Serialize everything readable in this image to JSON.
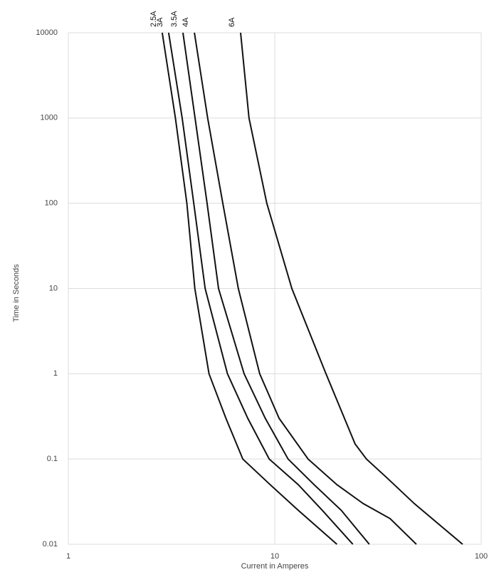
{
  "chart_data": {
    "type": "line",
    "x_label": "Current in Amperes",
    "y_label": "Time in Seconds",
    "xscale": "log",
    "yscale": "log",
    "grid": true,
    "xlim": [
      1,
      100
    ],
    "xticks": [
      1,
      10,
      100
    ],
    "ylim": [
      0.01,
      10000
    ],
    "yticks": [
      0.01,
      0.1,
      1,
      10,
      100,
      1000,
      10000
    ],
    "series": [
      {
        "name": "2.5A",
        "color": "#111111",
        "x": [
          2.85,
          3.3,
          3.75,
          4.1,
          4.8,
          5.8,
          7.0,
          9.5,
          13,
          20
        ],
        "values": [
          10000,
          1000,
          100,
          10,
          1,
          0.3,
          0.1,
          0.05,
          0.025,
          0.01
        ]
      },
      {
        "name": "3A",
        "color": "#111111",
        "x": [
          3.06,
          3.56,
          4.05,
          4.6,
          5.9,
          7.4,
          9.4,
          13,
          17,
          23.9
        ],
        "values": [
          10000,
          1000,
          100,
          10,
          1,
          0.3,
          0.1,
          0.05,
          0.025,
          0.01
        ]
      },
      {
        "name": "3.5A",
        "color": "#111111",
        "x": [
          3.59,
          4.11,
          4.7,
          5.34,
          7.1,
          9.0,
          11.6,
          15.5,
          21,
          28.7
        ],
        "values": [
          10000,
          1000,
          100,
          10,
          1,
          0.3,
          0.1,
          0.05,
          0.025,
          0.01
        ]
      },
      {
        "name": "4A",
        "color": "#111111",
        "x": [
          4.08,
          4.73,
          5.6,
          6.66,
          8.45,
          10.5,
          14.5,
          20,
          26.8,
          36.2,
          48.5
        ],
        "values": [
          10000,
          1000,
          100,
          10,
          1,
          0.3,
          0.1,
          0.05,
          0.03,
          0.02,
          0.01
        ]
      },
      {
        "name": "6A",
        "color": "#111111",
        "x": [
          6.83,
          7.5,
          9.15,
          12.1,
          17.7,
          24.5,
          27.8,
          35,
          47.4,
          81.3
        ],
        "values": [
          10000,
          1000,
          100,
          10,
          1,
          0.15,
          0.1,
          0.06,
          0.03,
          0.01
        ]
      }
    ]
  }
}
